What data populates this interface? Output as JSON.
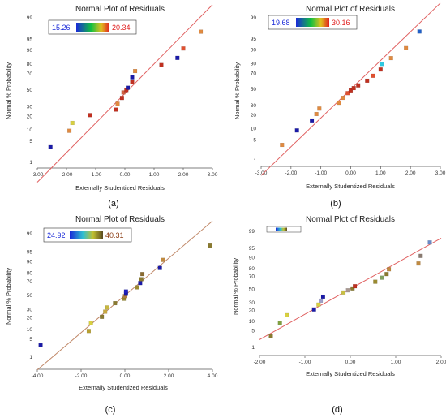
{
  "chart_data": [
    {
      "type": "scatter",
      "panel_label": "(a)",
      "title": "Normal Plot of Residuals",
      "xlabel": "Externally Studentized Residuals",
      "ylabel": "Normal % Probability",
      "xlim": [
        -3.0,
        3.0
      ],
      "x_ticks": [
        -3,
        -2,
        -1,
        0,
        1,
        2,
        3
      ],
      "x_tick_labels": [
        "-3.00",
        "-2.00",
        "-1.00",
        "0.00",
        "1.00",
        "2.00",
        "3.00"
      ],
      "y_ticks": [
        1,
        5,
        10,
        20,
        30,
        50,
        70,
        80,
        90,
        95,
        99
      ],
      "y_tick_labels": [
        "1",
        "5",
        "10",
        "20",
        "30",
        "50",
        "70",
        "80",
        "90",
        "95",
        "99"
      ],
      "y_scale": "normal-probability",
      "legend": {
        "min_label": "15.26",
        "max_label": "20.34",
        "placement": "top-left"
      },
      "line_color": "#e06060",
      "fit_line": {
        "x": [
          -3.0,
          3.0
        ],
        "y": [
          0.15,
          99.7
        ]
      },
      "points": [
        {
          "x": -2.55,
          "y": 3.3,
          "color": "#1a1aa8"
        },
        {
          "x": -1.9,
          "y": 9.5,
          "color": "#e08a40"
        },
        {
          "x": -1.8,
          "y": 14.5,
          "color": "#d8d040"
        },
        {
          "x": -1.2,
          "y": 21.0,
          "color": "#c03020"
        },
        {
          "x": -0.3,
          "y": 26.5,
          "color": "#c03020"
        },
        {
          "x": -0.25,
          "y": 33.0,
          "color": "#e08a40"
        },
        {
          "x": -0.1,
          "y": 40.0,
          "color": "#c03020"
        },
        {
          "x": -0.05,
          "y": 47.0,
          "color": "#d06040"
        },
        {
          "x": 0.05,
          "y": 50.0,
          "color": "#c03020"
        },
        {
          "x": 0.1,
          "y": 53.0,
          "color": "#1a1aa8"
        },
        {
          "x": 0.25,
          "y": 60.0,
          "color": "#c03020"
        },
        {
          "x": 0.25,
          "y": 66.0,
          "color": "#1a1aa8"
        },
        {
          "x": 0.35,
          "y": 73.0,
          "color": "#e08a40"
        },
        {
          "x": 1.25,
          "y": 79.0,
          "color": "#c03020"
        },
        {
          "x": 1.8,
          "y": 85.0,
          "color": "#1a1aa8"
        },
        {
          "x": 2.0,
          "y": 91.0,
          "color": "#e05030"
        },
        {
          "x": 2.6,
          "y": 97.0,
          "color": "#e08a40"
        }
      ]
    },
    {
      "type": "scatter",
      "panel_label": "(b)",
      "title": "Normal Plot of Residuals",
      "xlabel": "Externally Studentized Residuals",
      "ylabel": "Normal % Probability",
      "xlim": [
        -3.0,
        3.0
      ],
      "x_ticks": [
        -3,
        -2,
        -1,
        0,
        1,
        2,
        3
      ],
      "x_tick_labels": [
        "-3.00",
        "-2.00",
        "-1.00",
        "0.00",
        "1.00",
        "2.00",
        "3.00"
      ],
      "y_ticks": [
        1,
        5,
        10,
        20,
        30,
        50,
        70,
        80,
        90,
        95,
        99
      ],
      "y_tick_labels": [
        "1",
        "5",
        "10",
        "20",
        "30",
        "50",
        "70",
        "80",
        "90",
        "95",
        "99"
      ],
      "y_scale": "normal-probability",
      "legend": {
        "min_label": "19.68",
        "max_label": "30.16",
        "placement": "top-left"
      },
      "line_color": "#e06060",
      "fit_line": {
        "x": [
          -3.0,
          3.0
        ],
        "y": [
          0.25,
          99.75
        ]
      },
      "points": [
        {
          "x": -2.3,
          "y": 3.5,
          "color": "#e08a40"
        },
        {
          "x": -1.8,
          "y": 9.0,
          "color": "#1a1aa8"
        },
        {
          "x": -1.3,
          "y": 15.5,
          "color": "#1a1aa8"
        },
        {
          "x": -1.15,
          "y": 21.0,
          "color": "#e08a40"
        },
        {
          "x": -1.05,
          "y": 26.5,
          "color": "#e08a40"
        },
        {
          "x": -0.4,
          "y": 33.0,
          "color": "#e08a40"
        },
        {
          "x": -0.25,
          "y": 39.0,
          "color": "#e08a40"
        },
        {
          "x": -0.1,
          "y": 45.0,
          "color": "#e05030"
        },
        {
          "x": 0.0,
          "y": 48.5,
          "color": "#c03020"
        },
        {
          "x": 0.1,
          "y": 51.5,
          "color": "#c03020"
        },
        {
          "x": 0.25,
          "y": 55.0,
          "color": "#c03020"
        },
        {
          "x": 0.55,
          "y": 61.0,
          "color": "#c03020"
        },
        {
          "x": 0.75,
          "y": 67.0,
          "color": "#e05030"
        },
        {
          "x": 1.0,
          "y": 74.0,
          "color": "#c03020"
        },
        {
          "x": 1.05,
          "y": 79.5,
          "color": "#30c8e0"
        },
        {
          "x": 1.35,
          "y": 84.5,
          "color": "#e08a40"
        },
        {
          "x": 1.85,
          "y": 91.0,
          "color": "#e08a40"
        },
        {
          "x": 2.3,
          "y": 97.0,
          "color": "#2060c8"
        }
      ]
    },
    {
      "type": "scatter",
      "panel_label": "(c)",
      "title": "Normal Plot of Residuals",
      "xlabel": "Externally Studentized Residuals",
      "ylabel": "Normal % Probability",
      "xlim": [
        -4.0,
        4.0
      ],
      "x_ticks": [
        -4,
        -2,
        0,
        2,
        4
      ],
      "x_tick_labels": [
        "-4.00",
        "-2.00",
        "0.00",
        "2.00",
        "4.00"
      ],
      "y_ticks": [
        1,
        5,
        10,
        20,
        30,
        50,
        70,
        80,
        90,
        95,
        99
      ],
      "y_tick_labels": [
        "1",
        "5",
        "10",
        "20",
        "30",
        "50",
        "70",
        "80",
        "90",
        "95",
        "99"
      ],
      "y_scale": "normal-probability",
      "legend": {
        "min_label": "24.92",
        "max_label": "40.31",
        "placement": "top-left"
      },
      "line_color": "#c08868",
      "fit_line": {
        "x": [
          -4.0,
          4.0
        ],
        "y": [
          0.25,
          99.75
        ]
      },
      "points": [
        {
          "x": -3.85,
          "y": 3.0,
          "color": "#1a1aa8"
        },
        {
          "x": -1.65,
          "y": 9.0,
          "color": "#b8a030"
        },
        {
          "x": -1.55,
          "y": 15.0,
          "color": "#d8d040"
        },
        {
          "x": -1.05,
          "y": 21.0,
          "color": "#8a7a30"
        },
        {
          "x": -0.9,
          "y": 27.0,
          "color": "#c8a840"
        },
        {
          "x": -0.8,
          "y": 32.5,
          "color": "#c8b840"
        },
        {
          "x": -0.45,
          "y": 38.5,
          "color": "#8a7a30"
        },
        {
          "x": -0.05,
          "y": 45.0,
          "color": "#9a8a30"
        },
        {
          "x": 0.0,
          "y": 49.0,
          "color": "#b08040"
        },
        {
          "x": 0.05,
          "y": 52.5,
          "color": "#1a1aa8"
        },
        {
          "x": 0.05,
          "y": 56.0,
          "color": "#2020c0"
        },
        {
          "x": 0.55,
          "y": 62.0,
          "color": "#9a8a30"
        },
        {
          "x": 0.7,
          "y": 68.0,
          "color": "#1a1aa8"
        },
        {
          "x": 0.75,
          "y": 73.0,
          "color": "#8a7a30"
        },
        {
          "x": 0.8,
          "y": 79.0,
          "color": "#8a6a30"
        },
        {
          "x": 1.6,
          "y": 85.0,
          "color": "#1a1aa8"
        },
        {
          "x": 1.75,
          "y": 91.0,
          "color": "#c08a40"
        },
        {
          "x": 3.9,
          "y": 97.0,
          "color": "#8a7a30"
        }
      ]
    },
    {
      "type": "scatter",
      "panel_label": "(d)",
      "title": "Normal Plot of Residuals",
      "xlabel": "Externally Studentized Residuals",
      "ylabel": "Normal % Probability",
      "xlim": [
        -2.0,
        2.0
      ],
      "x_ticks": [
        -2,
        -1,
        0,
        1,
        2
      ],
      "x_tick_labels": [
        "-2.00",
        "-1.00",
        "0.00",
        "1.00",
        "2.00"
      ],
      "y_ticks": [
        1,
        5,
        10,
        20,
        30,
        50,
        70,
        80,
        90,
        95,
        99
      ],
      "y_tick_labels": [
        "1",
        "5",
        "10",
        "20",
        "30",
        "50",
        "70",
        "80",
        "90",
        "95",
        "99"
      ],
      "y_scale": "normal-probability",
      "legend": {
        "min_label": "",
        "max_label": "",
        "placement": "top-left"
      },
      "line_color": "#e06060",
      "fit_line": {
        "x": [
          -2.0,
          2.0
        ],
        "y": [
          2.2,
          98.0
        ]
      },
      "points": [
        {
          "x": -1.75,
          "y": 3.0,
          "color": "#8a7a30"
        },
        {
          "x": -1.55,
          "y": 9.0,
          "color": "#80a040"
        },
        {
          "x": -1.4,
          "y": 15.0,
          "color": "#d8d040"
        },
        {
          "x": -0.8,
          "y": 21.0,
          "color": "#1a1aa8"
        },
        {
          "x": -0.7,
          "y": 27.0,
          "color": "#d8d040"
        },
        {
          "x": -0.65,
          "y": 32.5,
          "color": "#a0a0c8"
        },
        {
          "x": -0.6,
          "y": 38.5,
          "color": "#1a1aa8"
        },
        {
          "x": -0.15,
          "y": 45.0,
          "color": "#c8c040"
        },
        {
          "x": -0.05,
          "y": 48.5,
          "color": "#a89890"
        },
        {
          "x": 0.05,
          "y": 51.5,
          "color": "#8a7a30"
        },
        {
          "x": 0.1,
          "y": 55.0,
          "color": "#c03020"
        },
        {
          "x": 0.55,
          "y": 62.0,
          "color": "#9a8a30"
        },
        {
          "x": 0.7,
          "y": 68.0,
          "color": "#80a060"
        },
        {
          "x": 0.8,
          "y": 73.0,
          "color": "#8a7a30"
        },
        {
          "x": 0.85,
          "y": 79.0,
          "color": "#c08a40"
        },
        {
          "x": 1.5,
          "y": 85.0,
          "color": "#c08a40"
        },
        {
          "x": 1.55,
          "y": 91.0,
          "color": "#8a7a70"
        },
        {
          "x": 1.75,
          "y": 97.0,
          "color": "#6a8ac8"
        }
      ]
    }
  ]
}
